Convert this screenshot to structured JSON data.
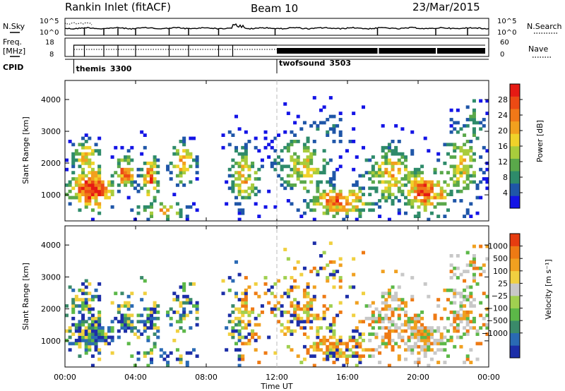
{
  "header": {
    "station": "Rankin Inlet (fitACF)",
    "beam": "Beam 10",
    "date": "23/Mar/2015"
  },
  "panels": {
    "nsky": {
      "left_label": "N.Sky",
      "right_label": "N.Search",
      "left_ticks": [
        "10^5",
        "10^0"
      ],
      "right_ticks": [
        "10^5",
        "10^0"
      ]
    },
    "freq": {
      "left_label_1": "Freq.",
      "left_label_2": "[MHz]",
      "right_label": "Nave",
      "left_ticks": [
        "18",
        "8"
      ],
      "right_ticks": [
        "60",
        "0"
      ]
    },
    "cpid": {
      "label": "CPID",
      "modes": [
        {
          "name": "themis",
          "id": "3300",
          "start_hour": 0.5
        },
        {
          "name": "twofsound",
          "id": "3503",
          "start_hour": 12.0
        }
      ]
    }
  },
  "chart_data": [
    {
      "type": "heatmap",
      "name": "power",
      "ylabel": "Slant Range [km]",
      "yticks": [
        "1000",
        "2000",
        "3000",
        "4000"
      ],
      "ylim": [
        180,
        4600
      ],
      "colorbar": {
        "label": "Power [dB]",
        "ticks": [
          "4",
          "8",
          "12",
          "16",
          "20",
          "24",
          "28"
        ],
        "range": [
          0,
          32
        ],
        "colors": [
          "#1414e6",
          "#1f56a8",
          "#2e8b6a",
          "#5aa84a",
          "#a8cc3c",
          "#f0d22a",
          "#f2a01e",
          "#f07818",
          "#ec4a14",
          "#e61a14"
        ]
      }
    },
    {
      "type": "heatmap",
      "name": "velocity",
      "ylabel": "Slant Range [km]",
      "yticks": [
        "1000",
        "2000",
        "3000",
        "4000"
      ],
      "ylim": [
        180,
        4600
      ],
      "colorbar": {
        "label": "Velocity [m s⁻¹]",
        "ticks": [
          "1000",
          "500",
          "100",
          "25",
          "−25",
          "−100",
          "−500",
          "−1000"
        ],
        "colors": [
          "#1c2ea8",
          "#2a6ab4",
          "#3a8a6a",
          "#5cb848",
          "#a0d050",
          "#c8c8c8",
          "#f0d040",
          "#f0a020",
          "#ee7a14",
          "#e63c10"
        ]
      }
    }
  ],
  "xaxis": {
    "label": "Time UT",
    "ticks": [
      "00:00",
      "04:00",
      "08:00",
      "12:00",
      "16:00",
      "20:00",
      "00:00"
    ],
    "range_hours": [
      0,
      24
    ]
  }
}
